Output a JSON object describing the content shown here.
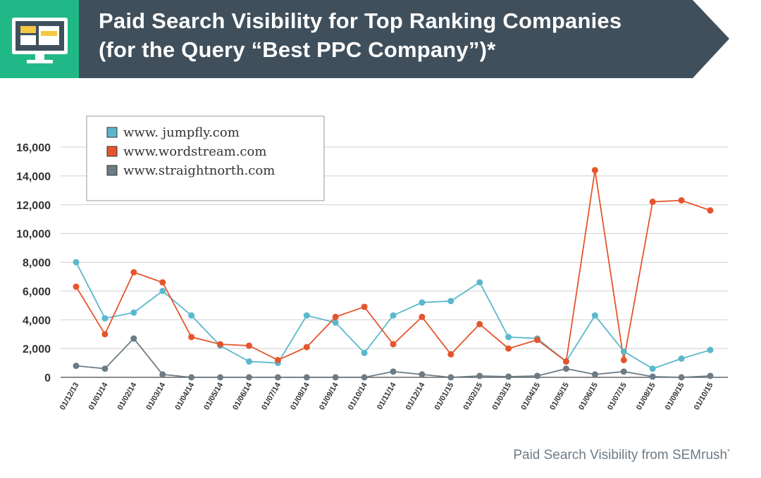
{
  "header": {
    "title_line1": "Paid Search Visibility for Top Ranking Companies",
    "title_line2": "(for the Query “Best PPC Company”)*",
    "icon": "monitor-icon",
    "colors": {
      "banner": "#3f4f5b",
      "icon_tile": "#20b886",
      "icon_screen": "#f3c842"
    }
  },
  "footer": {
    "source": "Paid Search Visibility from SEMrush",
    "mark": "*"
  },
  "chart_data": {
    "type": "line",
    "title": "Paid Search Visibility for Top Ranking Companies (for the Query “Best PPC Company”)*",
    "xlabel": "",
    "ylabel": "",
    "ylim": [
      0,
      16000
    ],
    "yticks": [
      0,
      2000,
      4000,
      6000,
      8000,
      10000,
      12000,
      14000,
      16000
    ],
    "ytick_labels": [
      "0",
      "2,000",
      "4,000",
      "6,000",
      "8,000",
      "10,000",
      "12,000",
      "14,000",
      "16,000"
    ],
    "grid": "horizontal",
    "legend": "top-left",
    "categories": [
      "01/12/13",
      "01/01/14",
      "01/02/14",
      "01/03/14",
      "01/04/14",
      "01/05/14",
      "01/06/14",
      "01/07/14",
      "01/08/14",
      "01/09/14",
      "01/10/14",
      "01/11/14",
      "01/12/14",
      "01/01/15",
      "01/02/15",
      "01/03/15",
      "01/04/15",
      "01/05/15",
      "01/06/15",
      "01/07/15",
      "01/08/15",
      "01/09/15",
      "01/10/15"
    ],
    "series": [
      {
        "name": "www. jumpfly.com",
        "color": "#5bb8cc",
        "values": [
          8000,
          4100,
          4500,
          6000,
          4300,
          2200,
          1100,
          1000,
          4300,
          3800,
          1700,
          4300,
          5200,
          5300,
          6600,
          2800,
          2700,
          1100,
          4300,
          1800,
          600,
          1300,
          1900
        ]
      },
      {
        "name": "www.wordstream.com",
        "color": "#e5552d",
        "values": [
          6300,
          3000,
          7300,
          6600,
          2800,
          2300,
          2200,
          1200,
          2100,
          4200,
          4900,
          2300,
          4200,
          1600,
          3700,
          2000,
          2600,
          1100,
          14400,
          1200,
          12200,
          12300,
          11600
        ]
      },
      {
        "name": "www.straightnorth.com",
        "color": "#6c7c86",
        "values": [
          800,
          600,
          2700,
          200,
          0,
          0,
          0,
          0,
          0,
          0,
          0,
          400,
          200,
          0,
          100,
          50,
          100,
          600,
          200,
          400,
          50,
          0,
          100
        ]
      }
    ]
  }
}
